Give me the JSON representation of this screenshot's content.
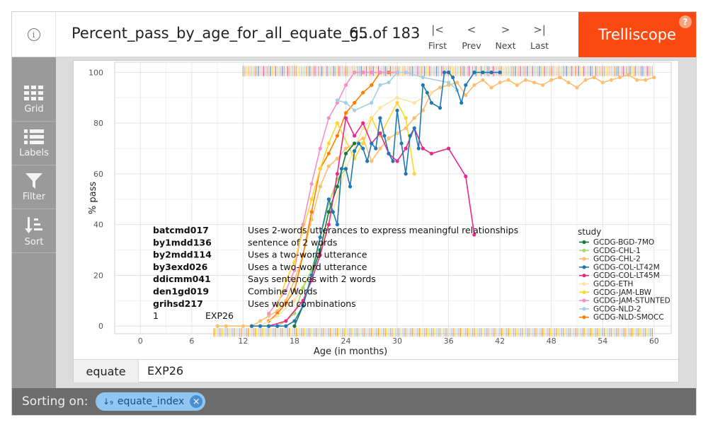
{
  "header": {
    "title": "Percent_pass_by_age_for_all_equate_g...",
    "page_count": "65 of 183",
    "nav": [
      {
        "glyph": "|<",
        "label": "First",
        "icon": "first-page-icon"
      },
      {
        "glyph": "<",
        "label": "Prev",
        "icon": "chevron-left-icon"
      },
      {
        "glyph": ">",
        "label": "Next",
        "icon": "chevron-right-icon"
      },
      {
        "glyph": ">|",
        "label": "Last",
        "icon": "last-page-icon"
      }
    ],
    "brand": "Trelliscope",
    "help": "?"
  },
  "sidebar": {
    "items": [
      {
        "label": "Grid",
        "icon": "grid-icon"
      },
      {
        "label": "Labels",
        "icon": "list-icon"
      },
      {
        "label": "Filter",
        "icon": "filter-icon"
      },
      {
        "label": "Sort",
        "icon": "sort-icon"
      }
    ]
  },
  "panel": {
    "label_key": "equate",
    "label_value": "EXP26"
  },
  "footer": {
    "sorting_label": "Sorting on:",
    "sort_chip": "equate_index",
    "sort_glyph": "↓₉"
  },
  "chart_data": {
    "type": "line",
    "xlabel": "Age (in months)",
    "ylabel": "% pass",
    "xlim": [
      -3,
      62
    ],
    "ylim": [
      -3,
      104
    ],
    "xticks": [
      0,
      6,
      12,
      18,
      24,
      30,
      36,
      42,
      48,
      54,
      60
    ],
    "yticks": [
      0,
      20,
      40,
      60,
      80,
      100
    ],
    "grid": true,
    "legend": {
      "title": "study",
      "placement": "right",
      "entries": [
        {
          "name": "GCDG-BGD-7MO",
          "color": "#1b7837"
        },
        {
          "name": "GCDG-CHL-1",
          "color": "#a6d96a"
        },
        {
          "name": "GCDG-CHL-2",
          "color": "#fdbf6f"
        },
        {
          "name": "GCDG-COL-LT42M",
          "color": "#1f78b4"
        },
        {
          "name": "GCDG-COL-LT45M",
          "color": "#e7298a"
        },
        {
          "name": "GCDG-ETH",
          "color": "#fbe3a0"
        },
        {
          "name": "GCDG-JAM-LBW",
          "color": "#fed530"
        },
        {
          "name": "GCDG-JAM-STUNTED",
          "color": "#f48fc8"
        },
        {
          "name": "GCDG-NLD-2",
          "color": "#a6cee3"
        },
        {
          "name": "GCDG-NLD-SMOCC",
          "color": "#ff7f00"
        }
      ]
    },
    "items": [
      {
        "code": "batcmd017",
        "text": "Uses 2-words utterances to express meaningful relationships"
      },
      {
        "code": "by1mdd136",
        "text": "sentence of 2 words"
      },
      {
        "code": "by2mdd114",
        "text": "Uses a two-word utterance"
      },
      {
        "code": "by3exd026",
        "text": "Uses a two-word utterance"
      },
      {
        "code": "ddicmm041",
        "text": "Says sentences with 2 words"
      },
      {
        "code": "den1gd019",
        "text": "Combine Words"
      },
      {
        "code": "grihsd217",
        "text": "Uses word combinations"
      }
    ],
    "annotation": {
      "number": "1",
      "equate": "EXP26"
    },
    "rug_colors": [
      "#ff7f00",
      "#fdbf6f",
      "#a6cee3",
      "#1f78b4",
      "#e7298a",
      "#f48fc8",
      "#fed530",
      "#a6d96a",
      "#9e9ac8",
      "#fb9a99"
    ],
    "series": [
      {
        "name": "GCDG-CHL-2",
        "color": "#fdbf6f",
        "points": [
          [
            9,
            0
          ],
          [
            10,
            0
          ],
          [
            12,
            0
          ],
          [
            13,
            0
          ],
          [
            14,
            2
          ],
          [
            15,
            4
          ],
          [
            16,
            6
          ],
          [
            17,
            10
          ],
          [
            18,
            18
          ],
          [
            19,
            28
          ],
          [
            20,
            42
          ],
          [
            21,
            55
          ],
          [
            22,
            63
          ],
          [
            23,
            66
          ],
          [
            24,
            70
          ],
          [
            25,
            72
          ],
          [
            26,
            74
          ],
          [
            27,
            65
          ],
          [
            28,
            70
          ],
          [
            29,
            74
          ],
          [
            30,
            76
          ],
          [
            31,
            78
          ],
          [
            32,
            82
          ],
          [
            33,
            85
          ],
          [
            34,
            92
          ],
          [
            35,
            94
          ],
          [
            36,
            95
          ],
          [
            37,
            96
          ],
          [
            38,
            91
          ],
          [
            39,
            95
          ],
          [
            40,
            97
          ],
          [
            41,
            94
          ],
          [
            42,
            96
          ],
          [
            43,
            97
          ],
          [
            44,
            95
          ],
          [
            45,
            97
          ],
          [
            46,
            96
          ],
          [
            47,
            95
          ],
          [
            48,
            97
          ],
          [
            49,
            98
          ],
          [
            50,
            96
          ],
          [
            51,
            94
          ],
          [
            52,
            97
          ],
          [
            53,
            98
          ],
          [
            54,
            96
          ],
          [
            55,
            97
          ],
          [
            56,
            98
          ],
          [
            57,
            99
          ],
          [
            58,
            97
          ],
          [
            59,
            97
          ],
          [
            60,
            98
          ]
        ]
      },
      {
        "name": "GCDG-NLD-SMOCC",
        "color": "#ff7f00",
        "points": [
          [
            15,
            2
          ],
          [
            16,
            5
          ],
          [
            17,
            9
          ],
          [
            18,
            14
          ],
          [
            19,
            28
          ],
          [
            20,
            45
          ],
          [
            21,
            62
          ],
          [
            22,
            68
          ],
          [
            23,
            75
          ],
          [
            24,
            84
          ],
          [
            25,
            88
          ],
          [
            26,
            92
          ],
          [
            27,
            95
          ],
          [
            28,
            100
          ],
          [
            29,
            100
          ],
          [
            30,
            100
          ]
        ]
      },
      {
        "name": "GCDG-JAM-STUNTED",
        "color": "#f48fc8",
        "points": [
          [
            15,
            5
          ],
          [
            17,
            14
          ],
          [
            18,
            22
          ],
          [
            19,
            40
          ],
          [
            20,
            56
          ],
          [
            21,
            70
          ],
          [
            22,
            82
          ],
          [
            23,
            88
          ],
          [
            24,
            95
          ],
          [
            25,
            100
          ],
          [
            26,
            100
          ],
          [
            27,
            100
          ],
          [
            28,
            100
          ],
          [
            30,
            100
          ]
        ]
      },
      {
        "name": "GCDG-NLD-2",
        "color": "#a6cee3",
        "points": [
          [
            23,
            89
          ],
          [
            24,
            88
          ],
          [
            25,
            85
          ],
          [
            27,
            88
          ],
          [
            28,
            95
          ],
          [
            29,
            96
          ],
          [
            30,
            100
          ],
          [
            31,
            100
          ],
          [
            33,
            98
          ],
          [
            36,
            96
          ],
          [
            37,
            93
          ]
        ]
      },
      {
        "name": "GCDG-JAM-LBW",
        "color": "#fed530",
        "points": [
          [
            16,
            8
          ],
          [
            17,
            18
          ],
          [
            18,
            25
          ],
          [
            19,
            38
          ],
          [
            20,
            50
          ],
          [
            21,
            62
          ],
          [
            22,
            72
          ],
          [
            23,
            80
          ],
          [
            25,
            66
          ],
          [
            26,
            72
          ],
          [
            27,
            82
          ],
          [
            28,
            75
          ],
          [
            30,
            88
          ],
          [
            31,
            82
          ],
          [
            32,
            60
          ]
        ]
      },
      {
        "name": "GCDG-ETH",
        "color": "#fbe3a0",
        "points": [
          [
            14,
            0
          ],
          [
            16,
            4
          ],
          [
            18,
            10
          ],
          [
            20,
            22
          ],
          [
            22,
            40
          ],
          [
            24,
            62
          ],
          [
            26,
            78
          ],
          [
            28,
            86
          ],
          [
            30,
            90
          ],
          [
            32,
            88
          ],
          [
            34,
            92
          ]
        ]
      },
      {
        "name": "GCDG-CHL-1",
        "color": "#a6d96a",
        "points": [
          [
            16,
            0
          ],
          [
            17,
            2
          ],
          [
            18,
            5
          ],
          [
            19,
            15
          ],
          [
            20,
            22
          ],
          [
            21,
            35
          ],
          [
            22,
            48
          ],
          [
            23,
            58
          ],
          [
            24,
            62
          ]
        ]
      },
      {
        "name": "GCDG-BGD-7MO",
        "color": "#1b7837",
        "points": [
          [
            18,
            0
          ],
          [
            19,
            8
          ],
          [
            20,
            20
          ],
          [
            21,
            30
          ],
          [
            22,
            45
          ],
          [
            23,
            55
          ],
          [
            24,
            68
          ],
          [
            25,
            72
          ]
        ]
      },
      {
        "name": "GCDG-COL-LT45M",
        "color": "#e7298a",
        "points": [
          [
            15,
            0
          ],
          [
            17,
            2
          ],
          [
            19,
            10
          ],
          [
            20,
            18
          ],
          [
            21,
            28
          ],
          [
            22,
            40
          ],
          [
            23,
            60
          ],
          [
            24,
            82
          ],
          [
            25,
            75
          ],
          [
            26,
            80
          ],
          [
            27,
            72
          ],
          [
            28,
            76
          ],
          [
            29,
            68
          ],
          [
            30,
            65
          ],
          [
            31,
            70
          ],
          [
            32,
            78
          ],
          [
            33,
            70
          ],
          [
            34,
            68
          ],
          [
            36,
            70
          ],
          [
            38,
            59
          ],
          [
            39,
            36
          ]
        ]
      },
      {
        "name": "GCDG-COL-LT42M",
        "color": "#1f78b4",
        "points": [
          [
            13,
            0
          ],
          [
            14,
            0
          ],
          [
            15,
            0
          ],
          [
            16,
            0
          ],
          [
            17,
            0
          ],
          [
            18,
            2
          ],
          [
            19,
            8
          ],
          [
            20,
            20
          ],
          [
            21,
            35
          ],
          [
            22,
            50
          ],
          [
            22.5,
            45
          ],
          [
            23,
            40
          ],
          [
            23.5,
            62
          ],
          [
            24,
            62
          ],
          [
            24.5,
            55
          ],
          [
            25,
            69
          ],
          [
            25.5,
            72
          ],
          [
            26,
            70
          ],
          [
            26.5,
            65
          ],
          [
            27,
            72
          ],
          [
            27.5,
            70
          ],
          [
            28,
            82
          ],
          [
            28.5,
            75
          ],
          [
            29,
            68
          ],
          [
            29.5,
            65
          ],
          [
            30,
            85
          ],
          [
            30.5,
            72
          ],
          [
            31,
            60
          ],
          [
            31.5,
            75
          ],
          [
            32,
            78
          ],
          [
            32.5,
            70
          ],
          [
            33,
            95
          ],
          [
            33.5,
            92
          ],
          [
            34,
            88
          ],
          [
            35,
            86
          ],
          [
            35.5,
            100
          ],
          [
            36,
            100
          ],
          [
            36.5,
            98
          ],
          [
            37.5,
            88
          ],
          [
            38,
            95
          ],
          [
            39,
            100
          ],
          [
            40,
            100
          ],
          [
            41,
            100
          ],
          [
            42,
            100
          ]
        ]
      }
    ]
  }
}
